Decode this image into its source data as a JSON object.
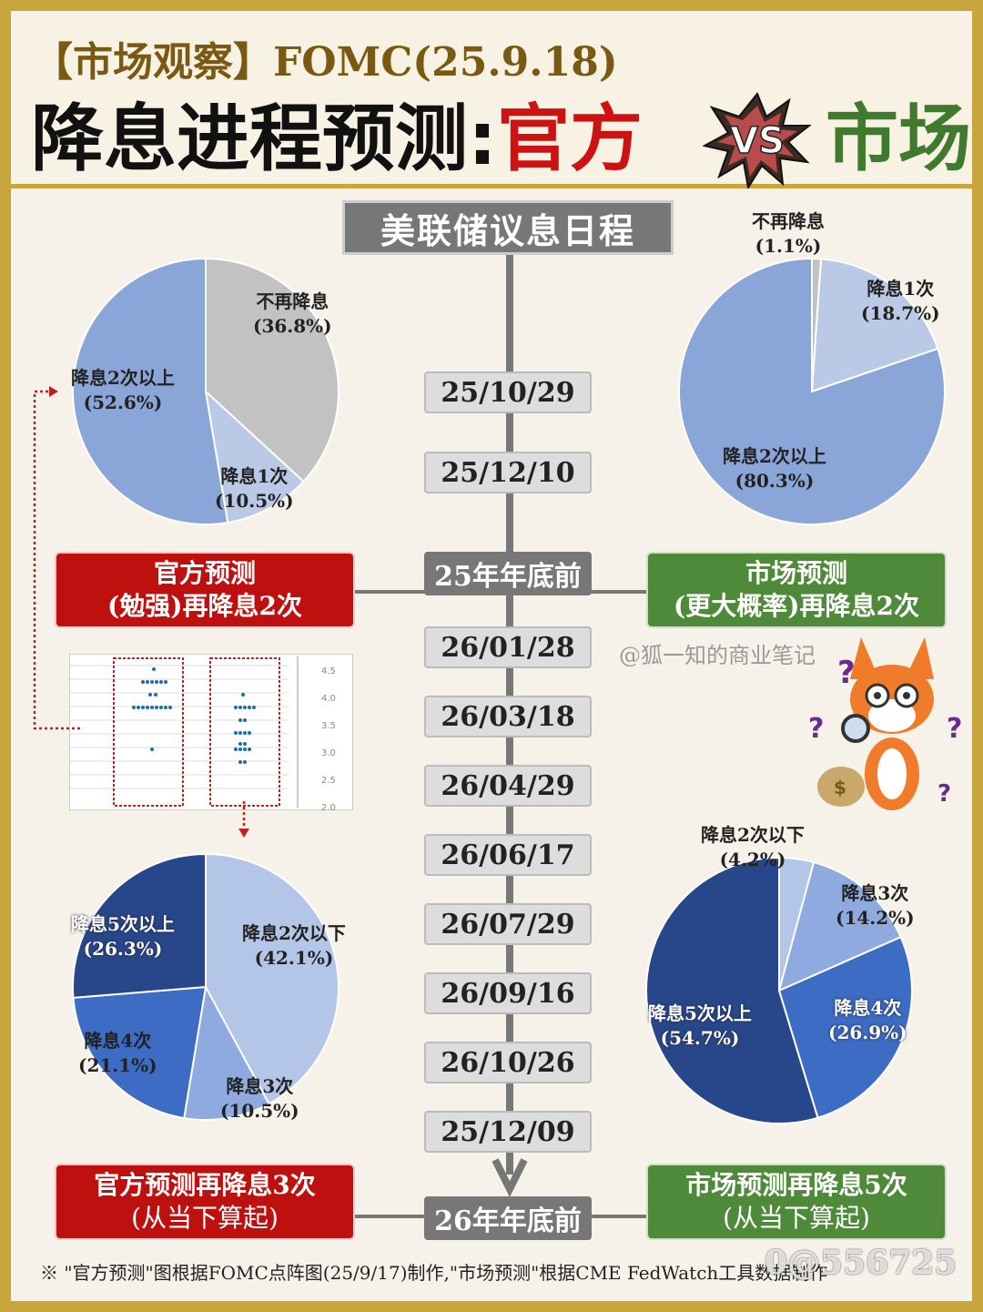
{
  "header": {
    "tag_line": "【市场观察】FOMC(25.9.18)",
    "title_part1": "降息进程预测:",
    "title_part2": "官方",
    "vs": "VS",
    "title_part3": "市场"
  },
  "schedule": {
    "title": "美联储议息日程",
    "dates_2025": [
      "25/10/29",
      "25/12/10"
    ],
    "year_end_2025": "25年年底前",
    "dates_2026": [
      "26/01/28",
      "26/03/18",
      "26/04/29",
      "26/06/17",
      "26/07/29",
      "26/09/16",
      "26/10/26",
      "25/12/09"
    ],
    "year_end_2026": "26年年底前"
  },
  "labels": {
    "official_2025_line1": "官方预测",
    "official_2025_line2": "(勉强)再降息2次",
    "market_2025_line1": "市场预测",
    "market_2025_line2": "(更大概率)再降息2次",
    "official_2026_line1": "官方预测再降息3次",
    "official_2026_line2": "(从当下算起)",
    "market_2026_line1": "市场预测再降息5次",
    "market_2026_line2": "(从当下算起)"
  },
  "chart_data": [
    {
      "type": "pie",
      "id": "official-2025",
      "slices": [
        {
          "label": "不再降息",
          "value": 36.8,
          "display": "(36.8%)",
          "color": "#c2c2c2"
        },
        {
          "label": "降息1次",
          "value": 10.5,
          "display": "(10.5%)",
          "color": "#b9c9e6"
        },
        {
          "label": "降息2次以上",
          "value": 52.6,
          "display": "(52.6%)",
          "color": "#8aa6d8"
        }
      ]
    },
    {
      "type": "pie",
      "id": "market-2025",
      "slices": [
        {
          "label": "不再降息",
          "value": 1.1,
          "display": "(1.1%)",
          "color": "#c2c2c2"
        },
        {
          "label": "降息1次",
          "value": 18.7,
          "display": "(18.7%)",
          "color": "#b9c9e6"
        },
        {
          "label": "降息2次以上",
          "value": 80.3,
          "display": "(80.3%)",
          "color": "#8aa6d8"
        }
      ]
    },
    {
      "type": "pie",
      "id": "official-2026",
      "slices": [
        {
          "label": "降息2次以下",
          "value": 42.1,
          "display": "(42.1%)",
          "color": "#b3c6e8"
        },
        {
          "label": "降息3次",
          "value": 10.5,
          "display": "(10.5%)",
          "color": "#8eaadf"
        },
        {
          "label": "降息4次",
          "value": 21.1,
          "display": "(21.1%)",
          "color": "#3d6cc4"
        },
        {
          "label": "降息5次以上",
          "value": 26.3,
          "display": "(26.3%)",
          "color": "#28478a"
        }
      ]
    },
    {
      "type": "pie",
      "id": "market-2026",
      "slices": [
        {
          "label": "降息2次以下",
          "value": 4.2,
          "display": "(4.2%)",
          "color": "#b3c6e8"
        },
        {
          "label": "降息3次",
          "value": 14.2,
          "display": "(14.2%)",
          "color": "#8eaadf"
        },
        {
          "label": "降息4次",
          "value": 26.9,
          "display": "(26.9%)",
          "color": "#3d6cc4"
        },
        {
          "label": "降息5次以上",
          "value": 54.7,
          "display": "(54.7%)",
          "color": "#28478a"
        }
      ]
    }
  ],
  "dotplot": {
    "y_ticks": [
      "4.5",
      "4.0",
      "3.5",
      "3.0",
      "2.5",
      "2.0"
    ]
  },
  "watermark": "@狐一知的商业笔记",
  "footnote": "※ \"官方预测\"图根据FOMC点阵图(25/9/17)制作,\"市场预测\"根据CME FedWatch工具数据制作",
  "watermark2": "0@556725"
}
